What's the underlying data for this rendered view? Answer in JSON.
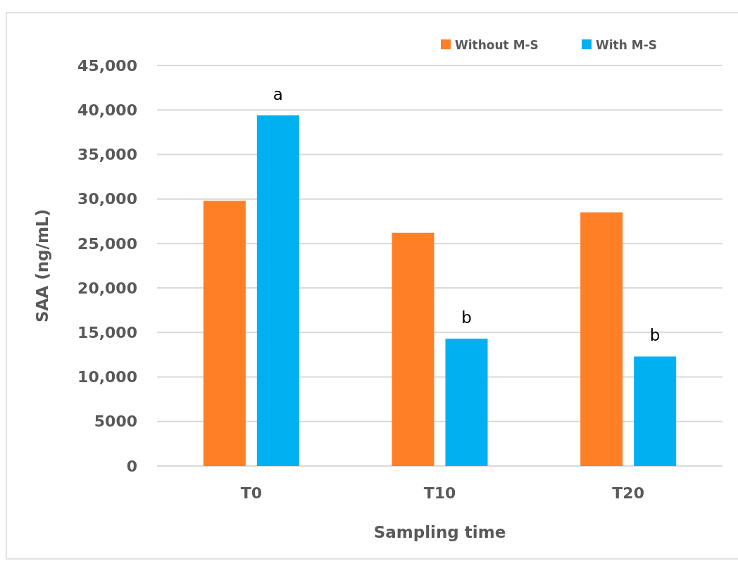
{
  "chart_data": {
    "type": "bar",
    "xlabel": "Sampling time",
    "ylabel": "SAA (ng/mL)",
    "categories": [
      "T0",
      "T10",
      "T20"
    ],
    "series": [
      {
        "name": "Without M-S",
        "color": "#ff7f27",
        "values": [
          29800,
          26200,
          28500
        ]
      },
      {
        "name": "With M-S",
        "color": "#00b0f0",
        "values": [
          39400,
          14300,
          12300
        ]
      }
    ],
    "ylim": [
      0,
      45000
    ],
    "yticks": [
      0,
      5000,
      {
        "value": 10000,
        "label": "10,000"
      },
      {
        "value": 15000,
        "label": "15,000"
      },
      {
        "value": 20000,
        "label": "20,000"
      },
      {
        "value": 25000,
        "label": "25,000"
      },
      {
        "value": 30000,
        "label": "30,000"
      },
      {
        "value": 35000,
        "label": "35,000"
      },
      {
        "value": 40000,
        "label": "40,000"
      },
      {
        "value": 45000,
        "label": "45,000"
      }
    ],
    "grid": "y",
    "legend": "top right",
    "annotations": [
      "a",
      "b",
      "b"
    ]
  }
}
